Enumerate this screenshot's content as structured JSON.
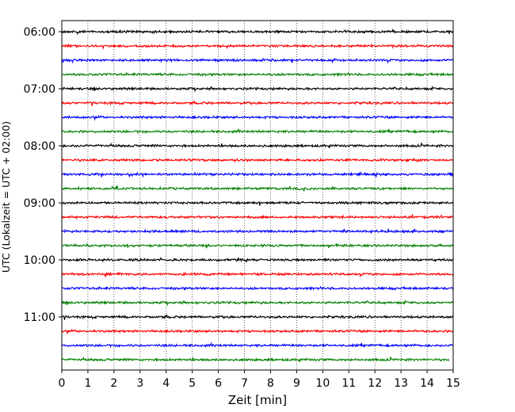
{
  "chart_data": {
    "type": "line",
    "title": "",
    "xlabel": "Zeit  [min]",
    "ylabel": "UTC (Lokalzeit = UTC + 02:00)",
    "xlim": [
      0,
      15
    ],
    "x_ticks": [
      0,
      1,
      2,
      3,
      4,
      5,
      6,
      7,
      8,
      9,
      10,
      11,
      12,
      13,
      14,
      15
    ],
    "y_tick_labels": [
      "06:00",
      "07:00",
      "08:00",
      "09:00",
      "10:00",
      "11:00"
    ],
    "trace_start": "06:00",
    "trace_interval_minutes": 15,
    "trace_count": 24,
    "trace_colors": [
      "#000000",
      "#ff0000",
      "#0000ff",
      "#008000"
    ],
    "grid": "vertical-dotted",
    "legend": "none"
  }
}
